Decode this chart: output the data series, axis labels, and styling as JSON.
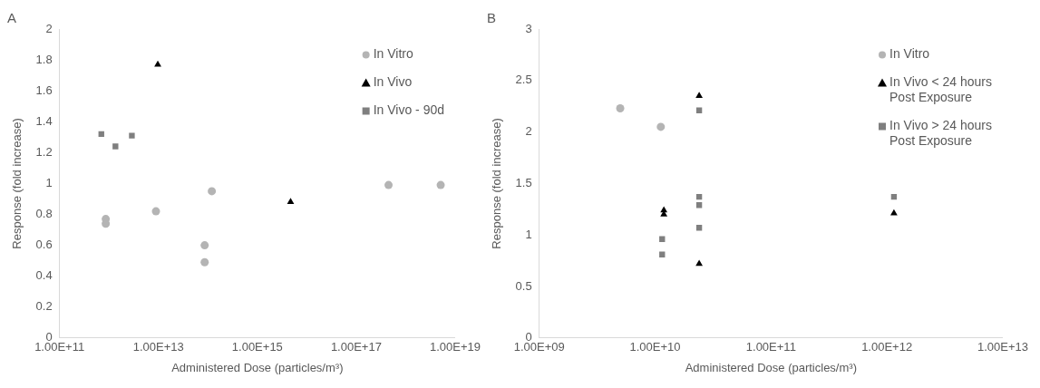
{
  "chart_data": [
    {
      "type": "scatter",
      "title": "A",
      "xlabel": "Administered Dose (particles/m³)",
      "ylabel": "Response (fold increase)",
      "log": "x",
      "grid": false,
      "legend": "top right",
      "xlim": [
        100000000000.0,
        1e+19
      ],
      "xticks": [
        {
          "value": 100000000000.0,
          "label": "1.00E+11"
        },
        {
          "value": 10000000000000.0,
          "label": "1.00E+13"
        },
        {
          "value": 1000000000000000.0,
          "label": "1.00E+15"
        },
        {
          "value": 1e+17,
          "label": "1.00E+17"
        },
        {
          "value": 1e+19,
          "label": "1.00E+19"
        }
      ],
      "ylim": [
        0,
        2
      ],
      "yticks": [
        0,
        0.2,
        0.4,
        0.6,
        0.8,
        1,
        1.2,
        1.4,
        1.6,
        1.8,
        2
      ],
      "series": [
        {
          "name": "In Vitro",
          "color": "#b4b4b4",
          "marker": "circle",
          "x": [
            860000000000.0,
            860000000000.0,
            8900000000000.0,
            86000000000000.0,
            86000000000000.0,
            120000000000000.0,
            4.5e+17,
            5.1e+18
          ],
          "values": [
            0.77,
            0.74,
            0.82,
            0.6,
            0.49,
            0.95,
            0.99,
            0.99
          ]
        },
        {
          "name": "In Vivo",
          "color": "#000000",
          "marker": "triangle",
          "x": [
            9700000000000.0,
            4700000000000000.0
          ],
          "values": [
            1.77,
            0.88
          ]
        },
        {
          "name": "In Vivo - 90d",
          "color": "#7f7f7f",
          "marker": "square",
          "x": [
            700000000000.0,
            1350000000000.0,
            2900000000000.0
          ],
          "values": [
            1.32,
            1.24,
            1.31
          ]
        }
      ]
    },
    {
      "type": "scatter",
      "title": "B",
      "xlabel": "Administered Dose (particles/m³)",
      "ylabel": "Response (fold increase)",
      "log": "x",
      "grid": false,
      "legend": "top right",
      "xlim": [
        1000000000.0,
        10000000000000.0
      ],
      "xticks": [
        {
          "value": 1000000000.0,
          "label": "1.00E+09"
        },
        {
          "value": 10000000000.0,
          "label": "1.00E+10"
        },
        {
          "value": 100000000000.0,
          "label": "1.00E+11"
        },
        {
          "value": 1000000000000.0,
          "label": "1.00E+12"
        },
        {
          "value": 10000000000000.0,
          "label": "1.00E+13"
        }
      ],
      "ylim": [
        0,
        3
      ],
      "yticks": [
        0,
        0.5,
        1,
        1.5,
        2,
        2.5,
        3
      ],
      "series": [
        {
          "name": "In Vitro",
          "color": "#b4b4b4",
          "marker": "circle",
          "x": [
            5000000000.0,
            11200000000.0
          ],
          "values": [
            2.23,
            2.05
          ]
        },
        {
          "name": "In Vivo < 24 hours Post Exposure",
          "color": "#000000",
          "marker": "triangle",
          "x": [
            11900000000.0,
            11900000000.0,
            24000000000.0,
            24000000000.0,
            1150000000000.0
          ],
          "values": [
            1.24,
            1.2,
            2.35,
            0.72,
            1.21
          ]
        },
        {
          "name": "In Vivo > 24 hours Post Exposure",
          "color": "#7f7f7f",
          "marker": "square",
          "x": [
            11500000000.0,
            11500000000.0,
            24000000000.0,
            24000000000.0,
            24000000000.0,
            24000000000.0,
            1150000000000.0
          ],
          "values": [
            0.96,
            0.81,
            2.21,
            1.37,
            1.29,
            1.07,
            1.37
          ]
        }
      ]
    }
  ]
}
